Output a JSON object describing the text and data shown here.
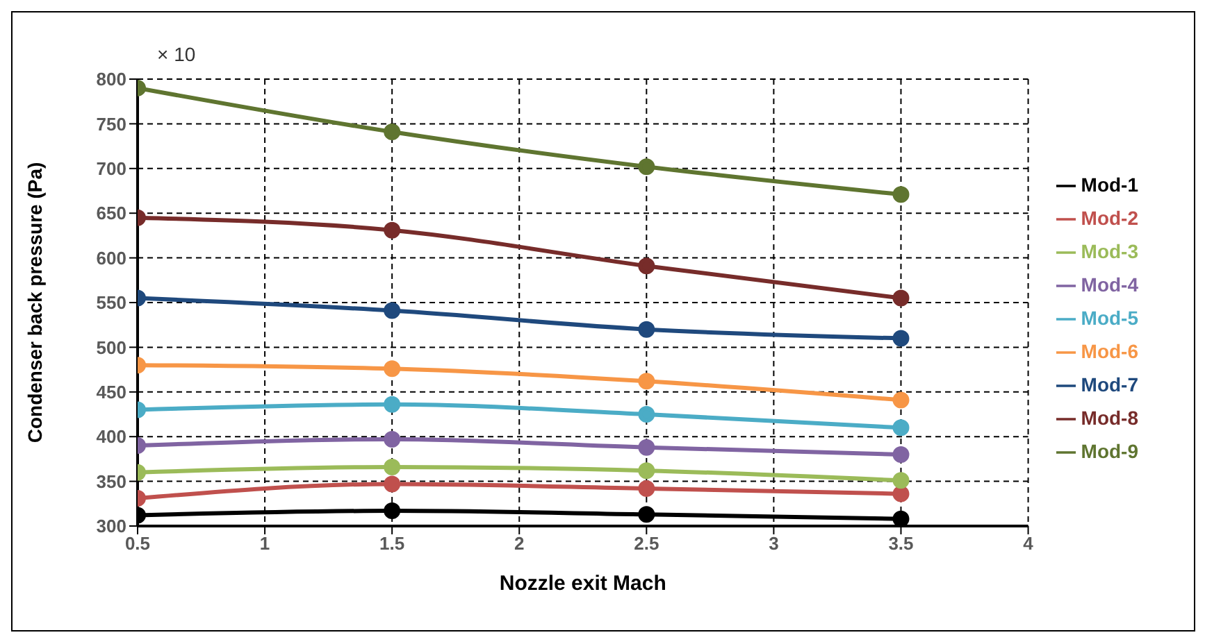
{
  "chart_data": {
    "type": "line",
    "xlabel": "Nozzle exit Mach",
    "ylabel": "Condenser back pressure (Pa)",
    "annotations": [
      "× 10"
    ],
    "x": [
      0.5,
      1.5,
      2.5,
      3.5
    ],
    "series": [
      {
        "name": "Mod-1",
        "color": "#000000",
        "values": [
          312,
          317,
          313,
          308
        ]
      },
      {
        "name": "Mod-2",
        "color": "#c0504d",
        "values": [
          331,
          347,
          342,
          336
        ]
      },
      {
        "name": "Mod-3",
        "color": "#9bbb59",
        "values": [
          360,
          366,
          362,
          351
        ]
      },
      {
        "name": "Mod-4",
        "color": "#8064a2",
        "values": [
          390,
          397,
          388,
          380
        ]
      },
      {
        "name": "Mod-5",
        "color": "#4bacc6",
        "values": [
          430,
          436,
          425,
          410
        ]
      },
      {
        "name": "Mod-6",
        "color": "#f79646",
        "values": [
          480,
          476,
          462,
          441
        ]
      },
      {
        "name": "Mod-7",
        "color": "#1f497d",
        "values": [
          555,
          541,
          520,
          510
        ]
      },
      {
        "name": "Mod-8",
        "color": "#772c2a",
        "values": [
          645,
          631,
          591,
          555
        ]
      },
      {
        "name": "Mod-9",
        "color": "#5f7530",
        "values": [
          790,
          741,
          702,
          671
        ]
      }
    ],
    "xlim": [
      0.5,
      4
    ],
    "xticks": [
      0.5,
      1,
      1.5,
      2,
      2.5,
      3,
      3.5,
      4
    ],
    "ylim": [
      300,
      800
    ],
    "yticks": [
      300,
      350,
      400,
      450,
      500,
      550,
      600,
      650,
      700,
      750,
      800
    ],
    "grid": true,
    "legend": "right",
    "marker": "circle",
    "line_style": "solid"
  }
}
